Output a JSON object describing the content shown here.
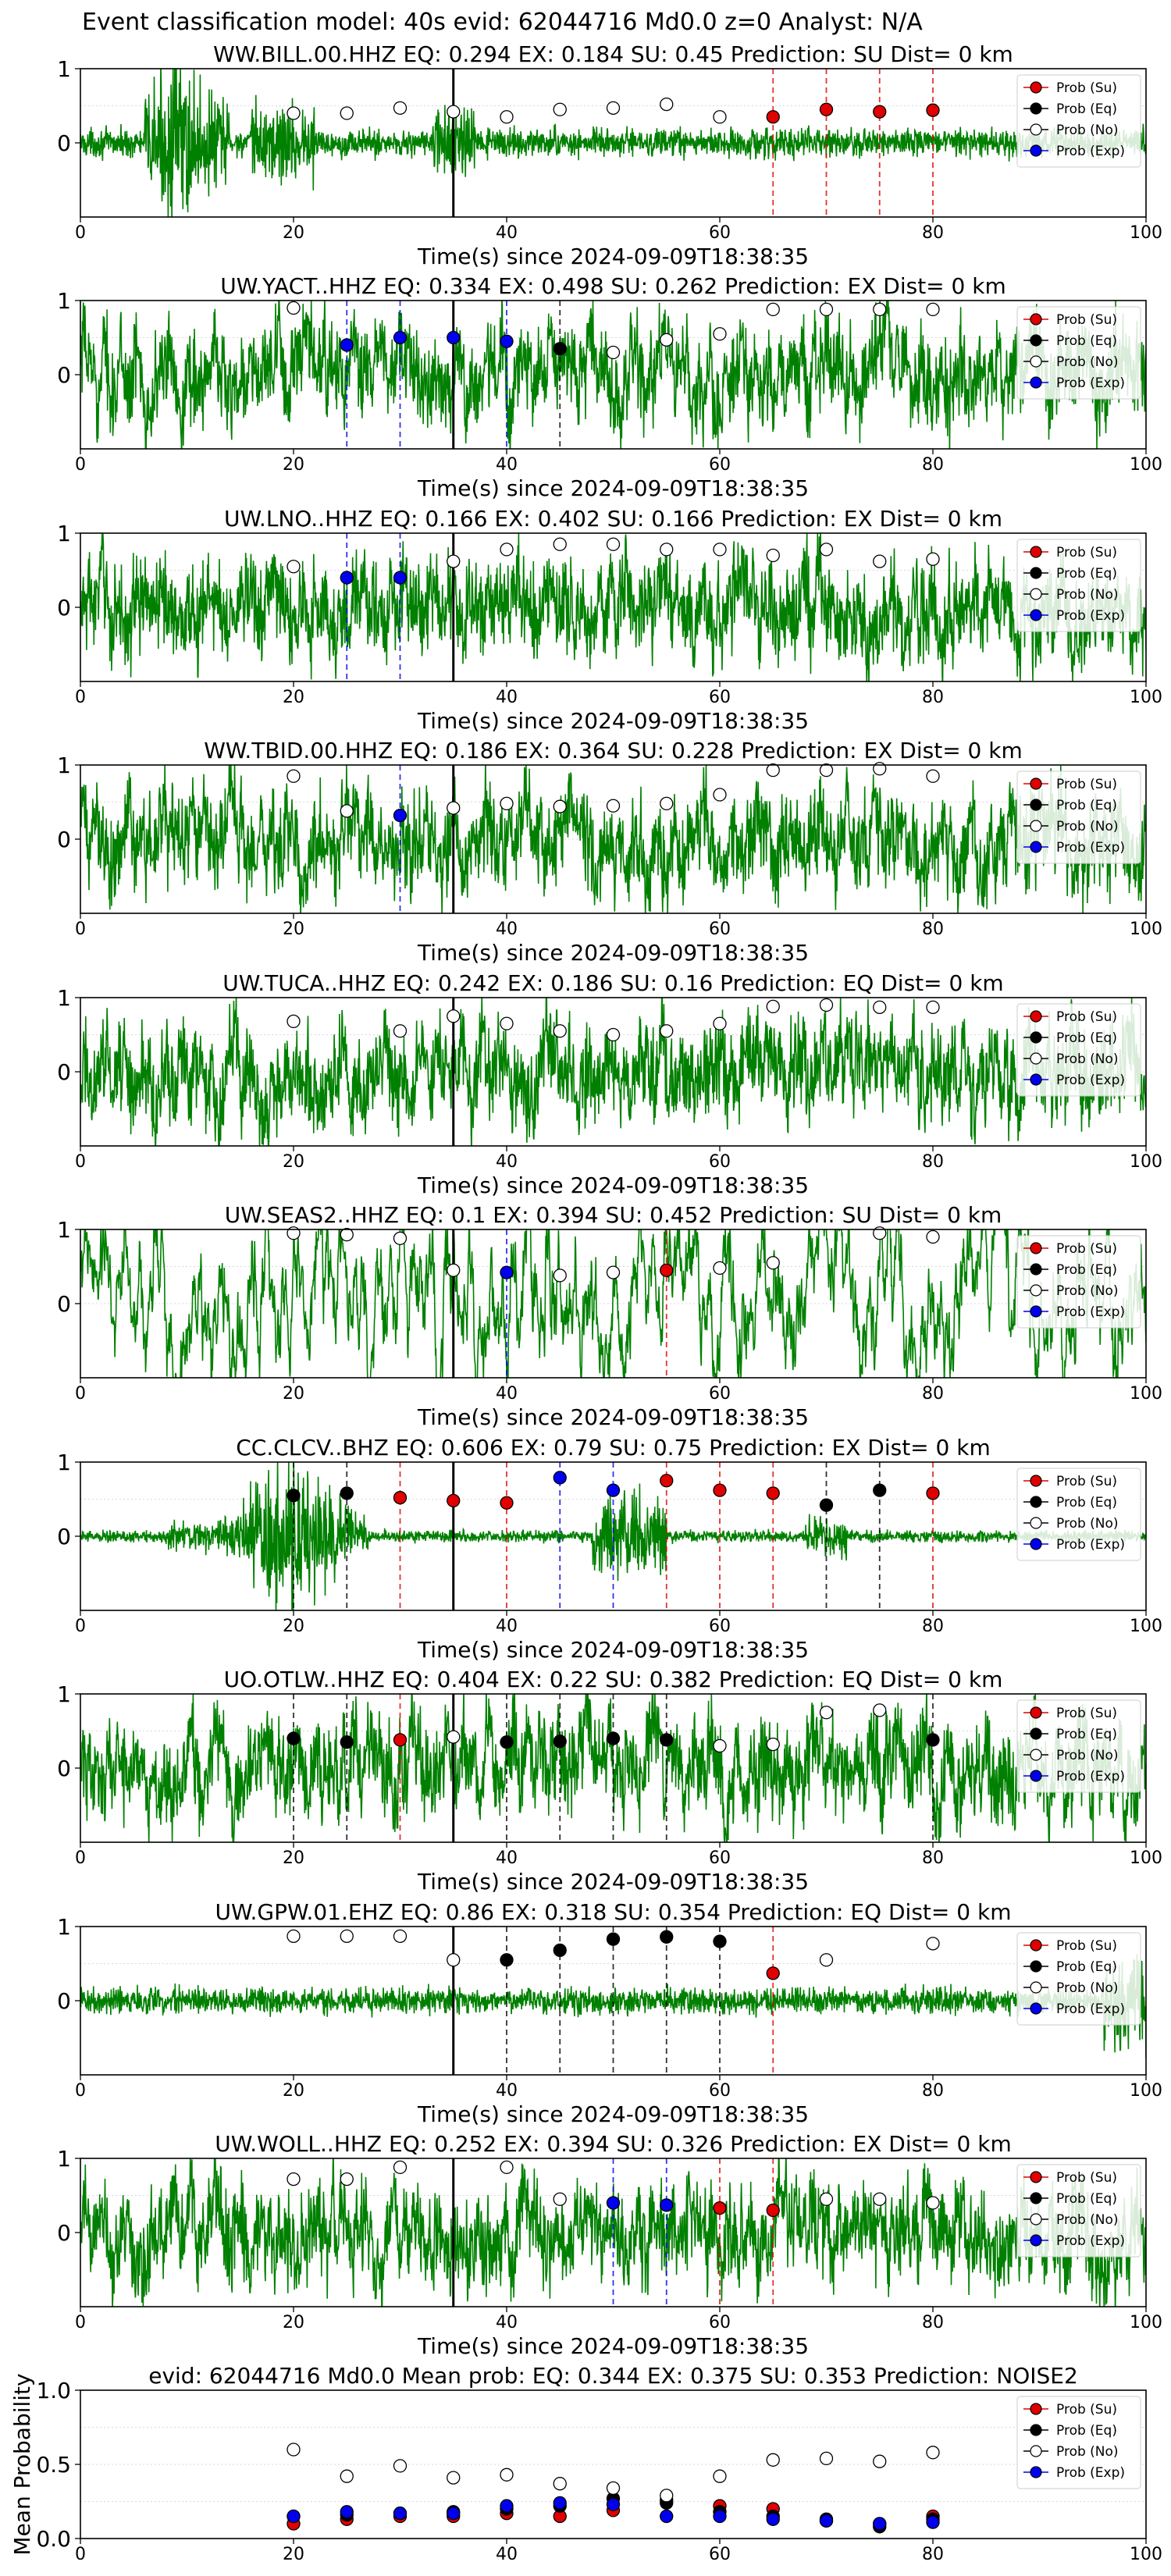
{
  "suptitle": "Event classification model: 40s evid: 62044716 Md0.0 z=0 Analyst: N/A",
  "legend": {
    "placement": "upper-right",
    "entries": [
      {
        "label": "Prob (Su)",
        "color": "#e00000",
        "filled": true
      },
      {
        "label": "Prob (Eq)",
        "color": "#000000",
        "filled": true
      },
      {
        "label": "Prob (No)",
        "color": "#ffffff",
        "filled": false
      },
      {
        "label": "Prob (Exp)",
        "color": "#0000ee",
        "filled": true
      }
    ]
  },
  "colors": {
    "waveform": "#008000",
    "su": "#e00000",
    "eq": "#000000",
    "no": "#ffffff",
    "exp": "#0000ee",
    "origin_line": "#000000"
  },
  "chart_data": [
    {
      "type": "line",
      "title": "WW.BILL.00.HHZ   EQ: 0.294  EX: 0.184  SU: 0.45   Prediction: SU    Dist= 0 km",
      "xlabel": "Time(s) since 2024-09-09T18:38:35",
      "xlim": [
        0,
        100
      ],
      "ylim": [
        -1,
        1
      ],
      "xticks": [
        "0",
        "20",
        "40",
        "60",
        "80",
        "100"
      ],
      "yticks": [
        "0",
        "1"
      ],
      "origin_time": 35,
      "waveform_style": "impulsive",
      "markers": [
        {
          "t": 20,
          "class": "no",
          "p": 0.4
        },
        {
          "t": 25,
          "class": "no",
          "p": 0.4
        },
        {
          "t": 30,
          "class": "no",
          "p": 0.47
        },
        {
          "t": 35,
          "class": "no",
          "p": 0.42
        },
        {
          "t": 40,
          "class": "no",
          "p": 0.35
        },
        {
          "t": 45,
          "class": "no",
          "p": 0.45
        },
        {
          "t": 50,
          "class": "no",
          "p": 0.47
        },
        {
          "t": 55,
          "class": "no",
          "p": 0.52
        },
        {
          "t": 60,
          "class": "no",
          "p": 0.35
        },
        {
          "t": 65,
          "class": "su",
          "p": 0.35
        },
        {
          "t": 70,
          "class": "su",
          "p": 0.45
        },
        {
          "t": 75,
          "class": "su",
          "p": 0.42
        },
        {
          "t": 80,
          "class": "su",
          "p": 0.44
        }
      ]
    },
    {
      "type": "line",
      "title": "UW.YACT..HHZ   EQ: 0.334  EX: 0.498  SU: 0.262   Prediction: EX    Dist= 0 km",
      "xlabel": "Time(s) since 2024-09-09T18:38:35",
      "xlim": [
        0,
        100
      ],
      "ylim": [
        -1,
        1
      ],
      "xticks": [
        "0",
        "20",
        "40",
        "60",
        "80",
        "100"
      ],
      "yticks": [
        "0",
        "1"
      ],
      "origin_time": 35,
      "waveform_style": "noisy",
      "markers": [
        {
          "t": 20,
          "class": "no",
          "p": 0.9
        },
        {
          "t": 25,
          "class": "exp",
          "p": 0.4
        },
        {
          "t": 30,
          "class": "exp",
          "p": 0.5
        },
        {
          "t": 35,
          "class": "exp",
          "p": 0.5
        },
        {
          "t": 40,
          "class": "exp",
          "p": 0.45
        },
        {
          "t": 45,
          "class": "eq",
          "p": 0.35
        },
        {
          "t": 50,
          "class": "no",
          "p": 0.3
        },
        {
          "t": 55,
          "class": "no",
          "p": 0.47
        },
        {
          "t": 60,
          "class": "no",
          "p": 0.55
        },
        {
          "t": 65,
          "class": "no",
          "p": 0.88
        },
        {
          "t": 70,
          "class": "no",
          "p": 0.88
        },
        {
          "t": 75,
          "class": "no",
          "p": 0.88
        },
        {
          "t": 80,
          "class": "no",
          "p": 0.88
        }
      ]
    },
    {
      "type": "line",
      "title": "UW.LNO..HHZ   EQ: 0.166  EX: 0.402  SU: 0.166   Prediction: EX    Dist= 0 km",
      "xlabel": "Time(s) since 2024-09-09T18:38:35",
      "xlim": [
        0,
        100
      ],
      "ylim": [
        -1,
        1
      ],
      "xticks": [
        "0",
        "20",
        "40",
        "60",
        "80",
        "100"
      ],
      "yticks": [
        "0",
        "1"
      ],
      "origin_time": 35,
      "waveform_style": "noisy",
      "markers": [
        {
          "t": 20,
          "class": "no",
          "p": 0.55
        },
        {
          "t": 25,
          "class": "exp",
          "p": 0.4
        },
        {
          "t": 30,
          "class": "exp",
          "p": 0.4
        },
        {
          "t": 35,
          "class": "no",
          "p": 0.62
        },
        {
          "t": 40,
          "class": "no",
          "p": 0.78
        },
        {
          "t": 45,
          "class": "no",
          "p": 0.85
        },
        {
          "t": 50,
          "class": "no",
          "p": 0.85
        },
        {
          "t": 55,
          "class": "no",
          "p": 0.78
        },
        {
          "t": 60,
          "class": "no",
          "p": 0.78
        },
        {
          "t": 65,
          "class": "no",
          "p": 0.7
        },
        {
          "t": 70,
          "class": "no",
          "p": 0.78
        },
        {
          "t": 75,
          "class": "no",
          "p": 0.62
        },
        {
          "t": 80,
          "class": "no",
          "p": 0.65
        }
      ]
    },
    {
      "type": "line",
      "title": "WW.TBID.00.HHZ   EQ: 0.186  EX: 0.364  SU: 0.228   Prediction: EX    Dist= 0 km",
      "xlabel": "Time(s) since 2024-09-09T18:38:35",
      "xlim": [
        0,
        100
      ],
      "ylim": [
        -1,
        1
      ],
      "xticks": [
        "0",
        "20",
        "40",
        "60",
        "80",
        "100"
      ],
      "yticks": [
        "0",
        "1"
      ],
      "origin_time": 35,
      "waveform_style": "noisy",
      "markers": [
        {
          "t": 20,
          "class": "no",
          "p": 0.85
        },
        {
          "t": 25,
          "class": "no",
          "p": 0.38
        },
        {
          "t": 30,
          "class": "exp",
          "p": 0.32
        },
        {
          "t": 35,
          "class": "no",
          "p": 0.42
        },
        {
          "t": 40,
          "class": "no",
          "p": 0.48
        },
        {
          "t": 45,
          "class": "no",
          "p": 0.44
        },
        {
          "t": 50,
          "class": "no",
          "p": 0.45
        },
        {
          "t": 55,
          "class": "no",
          "p": 0.48
        },
        {
          "t": 60,
          "class": "no",
          "p": 0.6
        },
        {
          "t": 65,
          "class": "no",
          "p": 0.93
        },
        {
          "t": 70,
          "class": "no",
          "p": 0.93
        },
        {
          "t": 75,
          "class": "no",
          "p": 0.95
        },
        {
          "t": 80,
          "class": "no",
          "p": 0.85
        }
      ]
    },
    {
      "type": "line",
      "title": "UW.TUCA..HHZ   EQ: 0.242  EX: 0.186  SU: 0.16   Prediction: EQ    Dist= 0 km",
      "xlabel": "Time(s) since 2024-09-09T18:38:35",
      "xlim": [
        0,
        100
      ],
      "ylim": [
        -1,
        1
      ],
      "xticks": [
        "0",
        "20",
        "40",
        "60",
        "80",
        "100"
      ],
      "yticks": [
        "0",
        "1"
      ],
      "origin_time": 35,
      "waveform_style": "noisy",
      "markers": [
        {
          "t": 20,
          "class": "no",
          "p": 0.68
        },
        {
          "t": 30,
          "class": "no",
          "p": 0.55
        },
        {
          "t": 35,
          "class": "no",
          "p": 0.75
        },
        {
          "t": 40,
          "class": "no",
          "p": 0.65
        },
        {
          "t": 45,
          "class": "no",
          "p": 0.55
        },
        {
          "t": 50,
          "class": "no",
          "p": 0.5
        },
        {
          "t": 55,
          "class": "no",
          "p": 0.55
        },
        {
          "t": 60,
          "class": "no",
          "p": 0.65
        },
        {
          "t": 65,
          "class": "no",
          "p": 0.88
        },
        {
          "t": 70,
          "class": "no",
          "p": 0.9
        },
        {
          "t": 75,
          "class": "no",
          "p": 0.87
        },
        {
          "t": 80,
          "class": "no",
          "p": 0.87
        }
      ]
    },
    {
      "type": "line",
      "title": "UW.SEAS2..HHZ   EQ: 0.1  EX: 0.394  SU: 0.452   Prediction: SU    Dist= 0 km",
      "xlabel": "Time(s) since 2024-09-09T18:38:35",
      "xlim": [
        0,
        100
      ],
      "ylim": [
        -1,
        1
      ],
      "xticks": [
        "0",
        "20",
        "40",
        "60",
        "80",
        "100"
      ],
      "yticks": [
        "0",
        "1"
      ],
      "origin_time": 35,
      "waveform_style": "smooth",
      "markers": [
        {
          "t": 20,
          "class": "no",
          "p": 0.95
        },
        {
          "t": 25,
          "class": "no",
          "p": 0.93
        },
        {
          "t": 30,
          "class": "no",
          "p": 0.88
        },
        {
          "t": 35,
          "class": "no",
          "p": 0.45
        },
        {
          "t": 40,
          "class": "exp",
          "p": 0.42
        },
        {
          "t": 45,
          "class": "no",
          "p": 0.38
        },
        {
          "t": 50,
          "class": "no",
          "p": 0.42
        },
        {
          "t": 55,
          "class": "su",
          "p": 0.45
        },
        {
          "t": 60,
          "class": "no",
          "p": 0.48
        },
        {
          "t": 65,
          "class": "no",
          "p": 0.55
        },
        {
          "t": 75,
          "class": "no",
          "p": 0.95
        },
        {
          "t": 80,
          "class": "no",
          "p": 0.9
        }
      ]
    },
    {
      "type": "line",
      "title": "CC.CLCV..BHZ   EQ: 0.606  EX: 0.79  SU: 0.75   Prediction: EX    Dist= 0 km",
      "xlabel": "Time(s) since 2024-09-09T18:38:35",
      "xlim": [
        0,
        100
      ],
      "ylim": [
        -1,
        1
      ],
      "xticks": [
        "0",
        "20",
        "40",
        "60",
        "80",
        "100"
      ],
      "yticks": [
        "0",
        "1"
      ],
      "origin_time": 35,
      "waveform_style": "bursts",
      "markers": [
        {
          "t": 20,
          "class": "eq",
          "p": 0.55
        },
        {
          "t": 25,
          "class": "eq",
          "p": 0.58
        },
        {
          "t": 30,
          "class": "su",
          "p": 0.52
        },
        {
          "t": 35,
          "class": "su",
          "p": 0.48
        },
        {
          "t": 40,
          "class": "su",
          "p": 0.45
        },
        {
          "t": 45,
          "class": "exp",
          "p": 0.79
        },
        {
          "t": 50,
          "class": "exp",
          "p": 0.62
        },
        {
          "t": 55,
          "class": "su",
          "p": 0.75
        },
        {
          "t": 60,
          "class": "su",
          "p": 0.62
        },
        {
          "t": 65,
          "class": "su",
          "p": 0.58
        },
        {
          "t": 70,
          "class": "eq",
          "p": 0.42
        },
        {
          "t": 75,
          "class": "eq",
          "p": 0.62
        },
        {
          "t": 80,
          "class": "su",
          "p": 0.58
        }
      ]
    },
    {
      "type": "line",
      "title": "UO.OTLW..HHZ   EQ: 0.404  EX: 0.22  SU: 0.382   Prediction: EQ    Dist= 0 km",
      "xlabel": "Time(s) since 2024-09-09T18:38:35",
      "xlim": [
        0,
        100
      ],
      "ylim": [
        -1,
        1
      ],
      "xticks": [
        "0",
        "20",
        "40",
        "60",
        "80",
        "100"
      ],
      "yticks": [
        "0",
        "1"
      ],
      "origin_time": 35,
      "waveform_style": "noisy",
      "markers": [
        {
          "t": 20,
          "class": "eq",
          "p": 0.4
        },
        {
          "t": 25,
          "class": "eq",
          "p": 0.35
        },
        {
          "t": 30,
          "class": "su",
          "p": 0.38
        },
        {
          "t": 35,
          "class": "no",
          "p": 0.42
        },
        {
          "t": 40,
          "class": "eq",
          "p": 0.35
        },
        {
          "t": 45,
          "class": "eq",
          "p": 0.36
        },
        {
          "t": 50,
          "class": "eq",
          "p": 0.4
        },
        {
          "t": 55,
          "class": "eq",
          "p": 0.38
        },
        {
          "t": 60,
          "class": "no",
          "p": 0.3
        },
        {
          "t": 65,
          "class": "no",
          "p": 0.32
        },
        {
          "t": 70,
          "class": "no",
          "p": 0.75
        },
        {
          "t": 75,
          "class": "no",
          "p": 0.78
        },
        {
          "t": 80,
          "class": "eq",
          "p": 0.38
        }
      ]
    },
    {
      "type": "line",
      "title": "UW.GPW.01.EHZ   EQ: 0.86  EX: 0.318  SU: 0.354   Prediction: EQ    Dist= 0 km",
      "xlabel": "Time(s) since 2024-09-09T18:38:35",
      "xlim": [
        0,
        100
      ],
      "ylim": [
        -1,
        1
      ],
      "xticks": [
        "0",
        "20",
        "40",
        "60",
        "80",
        "100"
      ],
      "yticks": [
        "0",
        "1"
      ],
      "origin_time": 35,
      "waveform_style": "quiet",
      "markers": [
        {
          "t": 20,
          "class": "no",
          "p": 0.87
        },
        {
          "t": 25,
          "class": "no",
          "p": 0.87
        },
        {
          "t": 30,
          "class": "no",
          "p": 0.87
        },
        {
          "t": 35,
          "class": "no",
          "p": 0.55
        },
        {
          "t": 40,
          "class": "eq",
          "p": 0.55
        },
        {
          "t": 45,
          "class": "eq",
          "p": 0.68
        },
        {
          "t": 50,
          "class": "eq",
          "p": 0.83
        },
        {
          "t": 55,
          "class": "eq",
          "p": 0.86
        },
        {
          "t": 60,
          "class": "eq",
          "p": 0.8
        },
        {
          "t": 65,
          "class": "su",
          "p": 0.37
        },
        {
          "t": 70,
          "class": "no",
          "p": 0.55
        },
        {
          "t": 80,
          "class": "no",
          "p": 0.77
        }
      ]
    },
    {
      "type": "line",
      "title": "UW.WOLL..HHZ   EQ: 0.252  EX: 0.394  SU: 0.326   Prediction: EX    Dist= 0 km",
      "xlabel": "Time(s) since 2024-09-09T18:38:35",
      "xlim": [
        0,
        100
      ],
      "ylim": [
        -1,
        1
      ],
      "xticks": [
        "0",
        "20",
        "40",
        "60",
        "80",
        "100"
      ],
      "yticks": [
        "0",
        "1"
      ],
      "origin_time": 35,
      "waveform_style": "noisy",
      "markers": [
        {
          "t": 20,
          "class": "no",
          "p": 0.72
        },
        {
          "t": 25,
          "class": "no",
          "p": 0.72
        },
        {
          "t": 30,
          "class": "no",
          "p": 0.88
        },
        {
          "t": 40,
          "class": "no",
          "p": 0.88
        },
        {
          "t": 45,
          "class": "no",
          "p": 0.45
        },
        {
          "t": 50,
          "class": "exp",
          "p": 0.4
        },
        {
          "t": 55,
          "class": "exp",
          "p": 0.37
        },
        {
          "t": 60,
          "class": "su",
          "p": 0.33
        },
        {
          "t": 65,
          "class": "su",
          "p": 0.3
        },
        {
          "t": 70,
          "class": "no",
          "p": 0.45
        },
        {
          "t": 75,
          "class": "no",
          "p": 0.45
        },
        {
          "t": 80,
          "class": "no",
          "p": 0.4
        }
      ]
    },
    {
      "type": "scatter",
      "title": "evid: 62044716  Md0.0   Mean prob:   EQ: 0.344  EX: 0.375  SU: 0.353   Prediction: NOISE2",
      "xlabel": "",
      "ylabel": "Mean Probability",
      "xlim": [
        0,
        100
      ],
      "ylim": [
        0,
        1
      ],
      "xticks": [
        "0",
        "20",
        "40",
        "60",
        "80",
        "100"
      ],
      "yticks": [
        "0.0",
        "0.5",
        "1.0"
      ],
      "x": [
        20,
        25,
        30,
        35,
        40,
        45,
        50,
        55,
        60,
        65,
        70,
        75,
        80
      ],
      "series": [
        {
          "name": "Prob (Su)",
          "class": "su",
          "values": [
            0.1,
            0.13,
            0.15,
            0.15,
            0.17,
            0.15,
            0.19,
            0.26,
            0.22,
            0.2,
            0.12,
            0.1,
            0.15
          ]
        },
        {
          "name": "Prob (Eq)",
          "class": "eq",
          "values": [
            0.15,
            0.16,
            0.17,
            0.18,
            0.2,
            0.22,
            0.27,
            0.24,
            0.18,
            0.15,
            0.13,
            0.08,
            0.13
          ]
        },
        {
          "name": "Prob (No)",
          "class": "no",
          "values": [
            0.6,
            0.42,
            0.49,
            0.41,
            0.43,
            0.37,
            0.34,
            0.29,
            0.42,
            0.53,
            0.54,
            0.52,
            0.58
          ]
        },
        {
          "name": "Prob (Exp)",
          "class": "exp",
          "values": [
            0.15,
            0.18,
            0.17,
            0.17,
            0.22,
            0.24,
            0.23,
            0.15,
            0.15,
            0.13,
            0.12,
            0.1,
            0.11
          ]
        }
      ]
    }
  ]
}
